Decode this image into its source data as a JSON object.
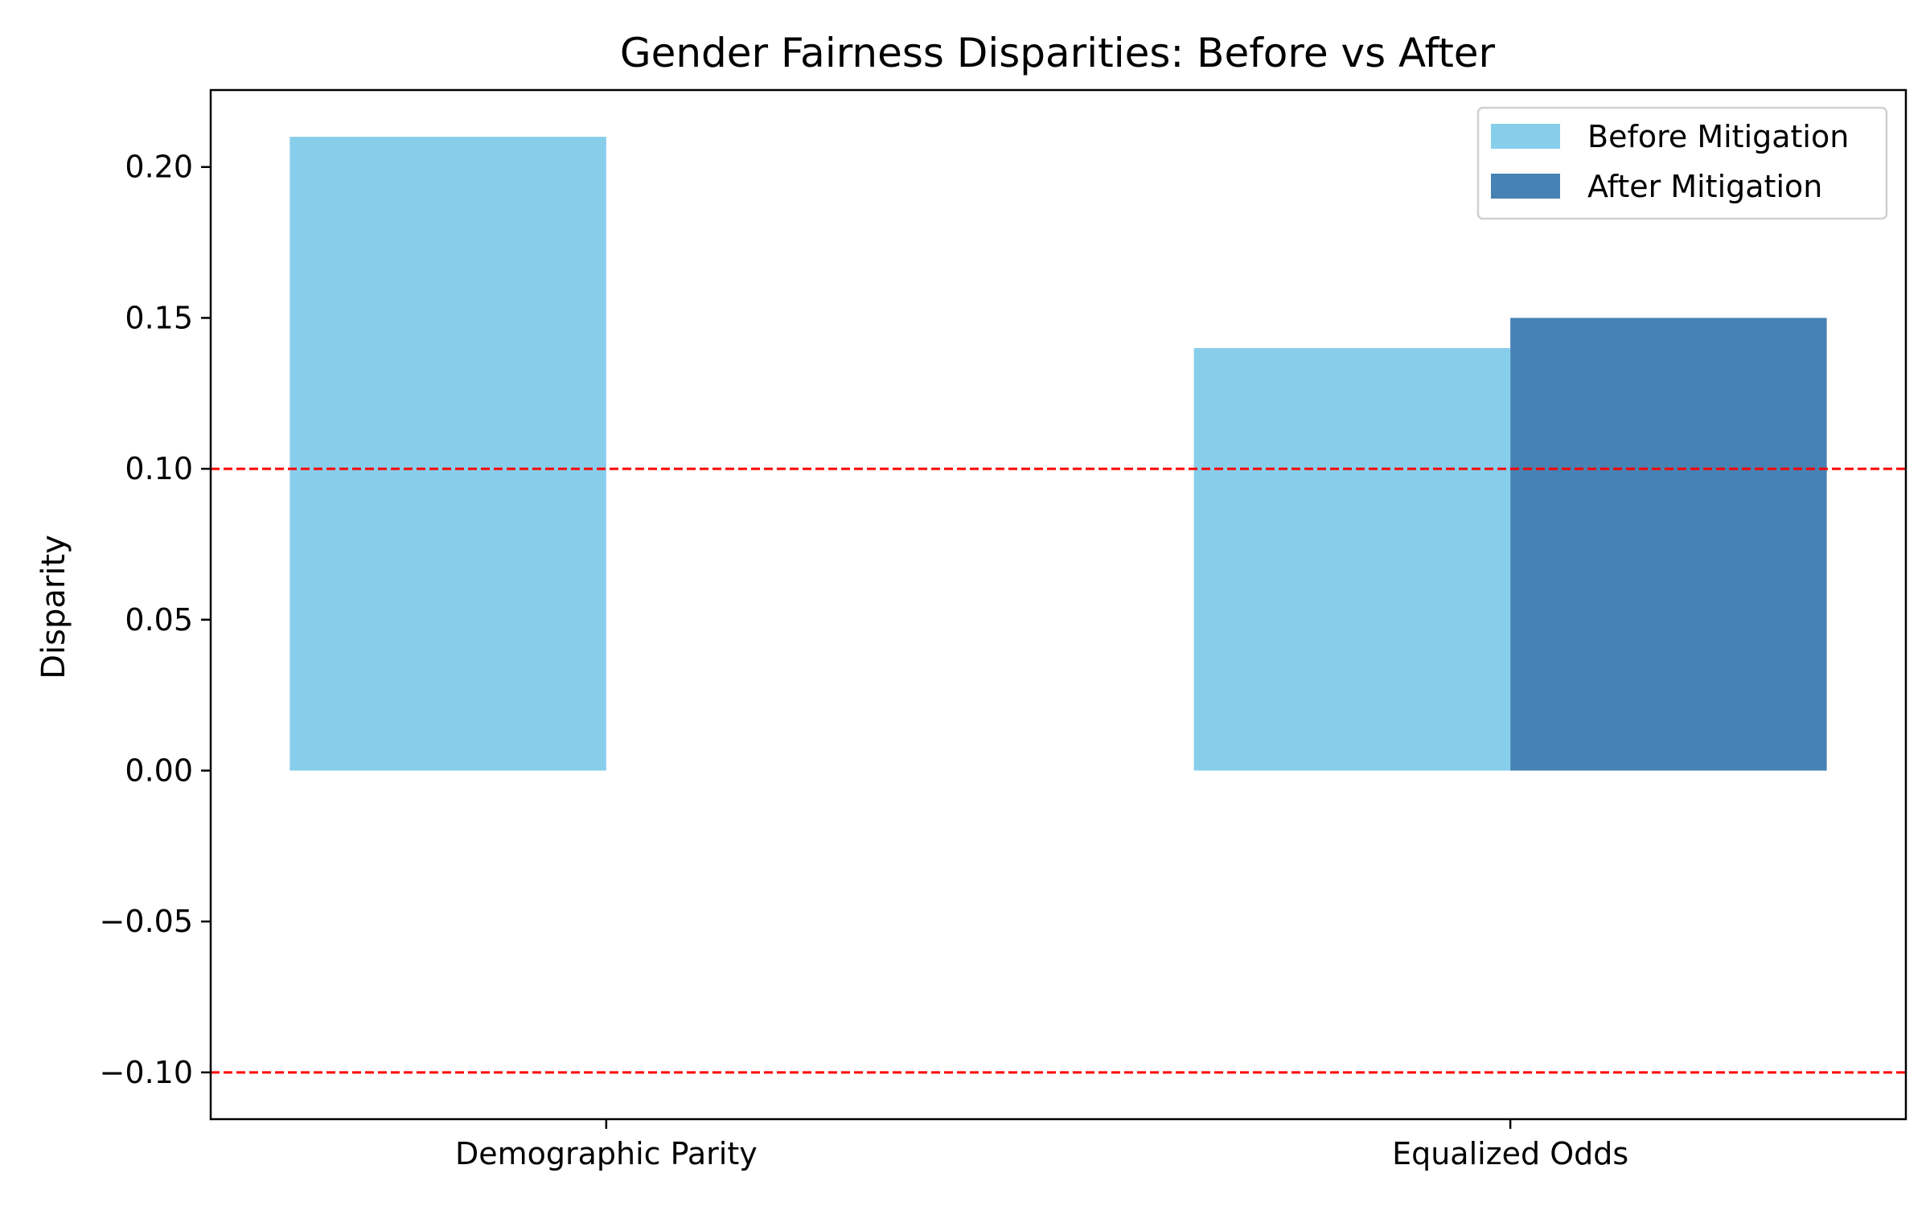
{
  "chart_data": {
    "type": "bar",
    "title": "Gender Fairness Disparities: Before vs After",
    "xlabel": "",
    "ylabel": "Disparity",
    "categories": [
      "Demographic Parity",
      "Equalized Odds"
    ],
    "series": [
      {
        "name": "Before Mitigation",
        "values": [
          0.21,
          0.14
        ],
        "color": "#87ceeb"
      },
      {
        "name": "After Mitigation",
        "values": [
          0.0,
          0.15
        ],
        "color": "#4682b4"
      }
    ],
    "ylim": [
      -0.1155,
      0.2255
    ],
    "yticks": [
      -0.1,
      -0.05,
      0.0,
      0.05,
      0.1,
      0.15,
      0.2
    ],
    "ytick_labels": [
      "−0.10",
      "−0.05",
      "0.00",
      "0.05",
      "0.10",
      "0.15",
      "0.20"
    ],
    "reference_lines": [
      {
        "y": 0.1,
        "color": "#ff0000",
        "style": "dashed"
      },
      {
        "y": -0.1,
        "color": "#ff0000",
        "style": "dashed"
      }
    ],
    "legend": {
      "placement": "top-right"
    },
    "grid": false
  }
}
